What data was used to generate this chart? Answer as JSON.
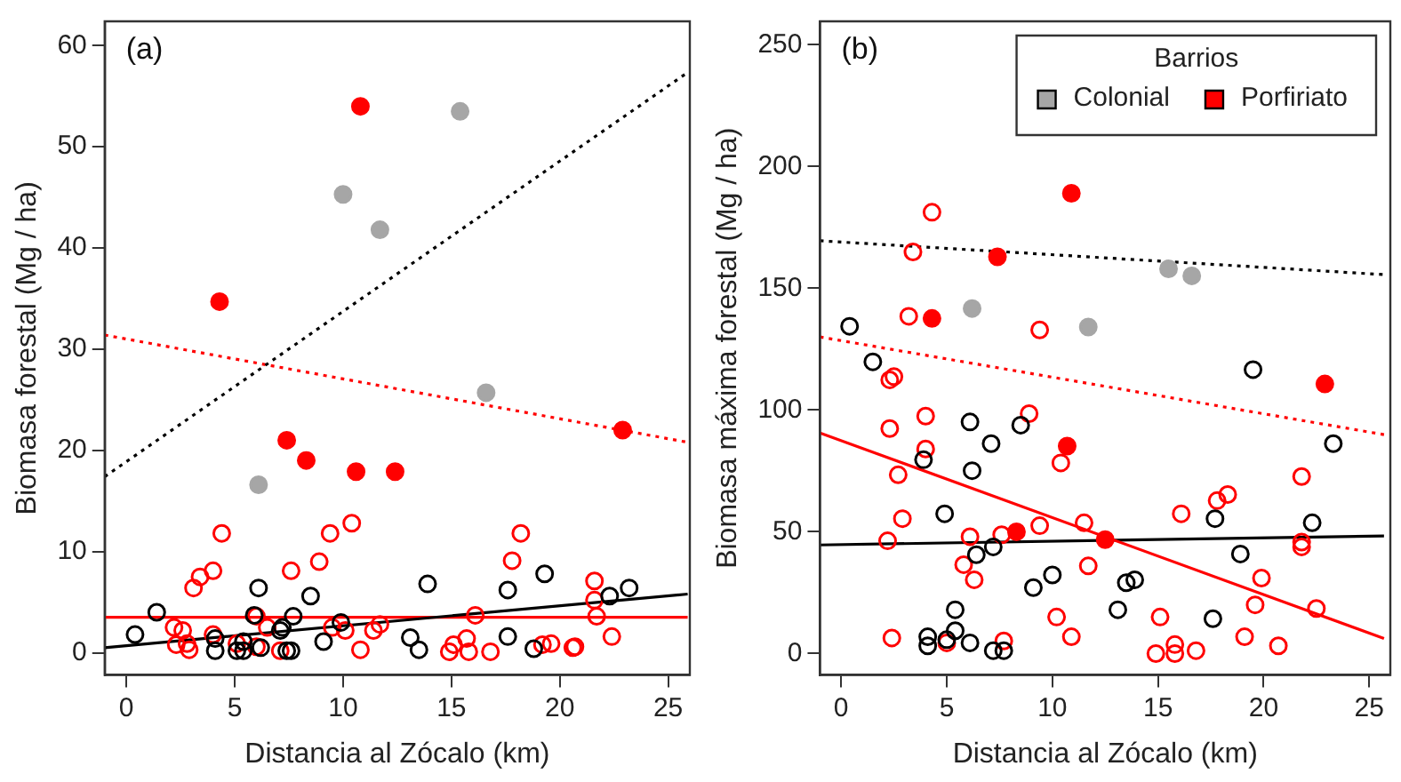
{
  "chart_data": [
    {
      "type": "scatter",
      "xlabel": "Distancia al Zócalo (km)",
      "ylabel": "Biomasa forestal (Mg / ha)",
      "xlim": [
        -1,
        26
      ],
      "ylim": [
        -2.2,
        62.4
      ],
      "xticks": [
        0,
        5,
        10,
        15,
        20,
        25
      ],
      "yticks": [
        0,
        10,
        20,
        30,
        40,
        50,
        60
      ],
      "marker": "circle",
      "annotations": [
        "(a)"
      ],
      "series": [
        {
          "color": "#000000",
          "x": [
            0.4,
            1.4,
            4.1,
            4.1,
            5.1,
            5.4,
            5.4,
            6.1,
            5.9,
            7.2,
            7.4,
            7.7,
            7.6,
            8.5,
            9.1,
            9.9,
            13.1,
            13.5,
            13.9,
            17.6,
            17.6,
            18.8,
            19.3,
            22.3,
            23.2,
            6.2,
            7.1
          ],
          "values": [
            1.8,
            4.0,
            1.4,
            0.2,
            0.2,
            1.1,
            0.2,
            6.4,
            3.7,
            2.5,
            0.2,
            3.6,
            0.2,
            5.6,
            1.1,
            3.0,
            1.5,
            0.3,
            6.8,
            6.2,
            1.6,
            0.4,
            7.8,
            5.6,
            6.4,
            0.5,
            2.2
          ]
        },
        {
          "color": "#ff0000",
          "x": [
            4.4,
            3.1,
            3.4,
            4.0,
            7.6,
            8.9,
            9.4,
            10.4,
            17.8,
            18.2,
            21.6,
            21.6,
            21.7,
            22.4,
            2.2,
            2.6,
            2.3,
            2.9,
            4.0,
            5.1,
            6.0,
            6.0,
            6.5,
            10.1,
            10.8,
            11.4,
            11.7,
            16.1,
            14.9,
            15.1,
            15.7,
            15.8,
            16.8,
            19.2,
            19.6,
            20.6,
            20.7,
            7.1,
            9.5,
            2.8
          ],
          "values": [
            11.8,
            6.4,
            7.5,
            8.1,
            8.1,
            9.0,
            11.8,
            12.8,
            9.1,
            11.8,
            7.1,
            5.2,
            3.6,
            1.6,
            2.5,
            2.2,
            0.8,
            0.3,
            1.8,
            0.9,
            0.6,
            3.6,
            2.5,
            2.2,
            0.3,
            2.2,
            2.8,
            3.7,
            0.1,
            0.8,
            1.4,
            0.1,
            0.1,
            0.8,
            0.9,
            0.5,
            0.6,
            0.2,
            2.5,
            0.9
          ]
        },
        {
          "color": "#a6a6a6",
          "x": [
            15.4,
            10.0,
            11.7,
            16.6,
            6.1
          ],
          "values": [
            53.5,
            45.3,
            41.8,
            25.7,
            16.6
          ]
        },
        {
          "color": "#ff0000",
          "x": [
            10.8,
            4.3,
            22.9,
            7.4,
            8.3,
            10.6,
            12.4
          ],
          "values": [
            54.0,
            34.7,
            22.0,
            21.0,
            19.0,
            17.9,
            17.9
          ]
        },
        {
          "type": "line",
          "color": "#000000",
          "line_style": "dotted",
          "marker": "none",
          "x": [
            -1,
            25.8
          ],
          "values": [
            17.4,
            57.2
          ]
        },
        {
          "type": "line",
          "color": "#ff0000",
          "line_style": "dotted",
          "marker": "none",
          "x": [
            -1,
            25.9
          ],
          "values": [
            31.4,
            20.8
          ]
        },
        {
          "type": "line",
          "color": "#000000",
          "line_style": "solid",
          "marker": "none",
          "x": [
            -1,
            25.9
          ],
          "values": [
            0.5,
            5.8
          ]
        },
        {
          "type": "line",
          "color": "#ff0000",
          "line_style": "solid",
          "marker": "none",
          "x": [
            -1,
            25.9
          ],
          "values": [
            3.5,
            3.5
          ]
        }
      ]
    },
    {
      "type": "scatter",
      "xlabel": "Distancia al Zócalo (km)",
      "ylabel": "Biomasa máxima forestal (Mg / ha)",
      "xlim": [
        -1,
        26
      ],
      "ylim": [
        -8.8,
        259.6
      ],
      "xticks": [
        0,
        5,
        10,
        15,
        20,
        25
      ],
      "yticks": [
        0,
        50,
        100,
        150,
        200,
        250
      ],
      "marker": "circle",
      "annotations": [
        "(b)"
      ],
      "legend": "top right",
      "legend_title": "Barrios",
      "series": [
        {
          "color": "#000000",
          "x": [
            0.4,
            1.5,
            19.5,
            23.3,
            6.1,
            8.5,
            7.1,
            3.9,
            6.2,
            4.9,
            17.7,
            22.3,
            6.4,
            7.2,
            18.9,
            10.0,
            9.1,
            13.5,
            13.9,
            13.1,
            17.6,
            5.4,
            5.4,
            4.1,
            4.1,
            5.0,
            6.1,
            7.2,
            7.7
          ],
          "values": [
            134.4,
            119.8,
            116.6,
            86.2,
            95.1,
            93.8,
            86.2,
            79.6,
            75.1,
            57.4,
            55.4,
            53.7,
            40.6,
            43.8,
            40.9,
            32.3,
            27.1,
            29.1,
            30.3,
            18.0,
            14.3,
            18.0,
            9.4,
            3.2,
            6.9,
            5.7,
            4.4,
            1.2,
            1.2
          ]
        },
        {
          "color": "#ff0000",
          "x": [
            4.3,
            3.4,
            3.2,
            9.4,
            2.3,
            2.5,
            8.9,
            4.0,
            2.3,
            4.0,
            2.7,
            10.4,
            2.9,
            2.2,
            6.1,
            7.6,
            9.4,
            11.5,
            5.8,
            6.3,
            11.7,
            16.1,
            17.8,
            18.3,
            21.8,
            21.8,
            21.8,
            19.9,
            19.6,
            20.7,
            19.1,
            22.5,
            10.2,
            10.9,
            15.1,
            14.9,
            15.8,
            15.8,
            16.8,
            2.4,
            5.0,
            7.7
          ],
          "values": [
            181.2,
            164.9,
            138.5,
            132.9,
            112.4,
            113.7,
            98.5,
            97.5,
            92.4,
            84.0,
            73.4,
            78.3,
            55.4,
            46.3,
            48.0,
            48.8,
            52.5,
            53.7,
            36.5,
            30.3,
            36.0,
            57.4,
            62.8,
            65.3,
            72.7,
            45.8,
            43.8,
            31.0,
            20.0,
            3.2,
            6.9,
            18.5,
            15.0,
            6.9,
            15.0,
            0,
            3.7,
            0,
            1.2,
            6.4,
            4.4,
            5.2
          ]
        },
        {
          "name": "Colonial",
          "color": "#a6a6a6",
          "x": [
            6.2,
            11.7,
            15.5,
            16.6
          ],
          "values": [
            141.7,
            134.1,
            158.0,
            155.1
          ]
        },
        {
          "name": "Porfiriato",
          "color": "#ff0000",
          "x": [
            10.9,
            7.4,
            4.3,
            22.9,
            10.7,
            8.3,
            12.5
          ],
          "values": [
            189.0,
            162.9,
            137.6,
            110.7,
            85.2,
            50.0,
            46.8
          ]
        },
        {
          "type": "line",
          "color": "#000000",
          "line_style": "dotted",
          "marker": "none",
          "x": [
            -1,
            25.7
          ],
          "values": [
            169.5,
            155.6
          ]
        },
        {
          "type": "line",
          "color": "#ff0000",
          "line_style": "dotted",
          "marker": "none",
          "x": [
            -1,
            25.7
          ],
          "values": [
            130.0,
            89.9
          ]
        },
        {
          "type": "line",
          "color": "#ff0000",
          "line_style": "solid",
          "marker": "none",
          "x": [
            -1,
            25.7
          ],
          "values": [
            90.6,
            6.2
          ]
        },
        {
          "type": "line",
          "color": "#000000",
          "line_style": "solid",
          "marker": "none",
          "x": [
            -1,
            25.7
          ],
          "values": [
            44.6,
            48.3
          ]
        }
      ]
    }
  ]
}
